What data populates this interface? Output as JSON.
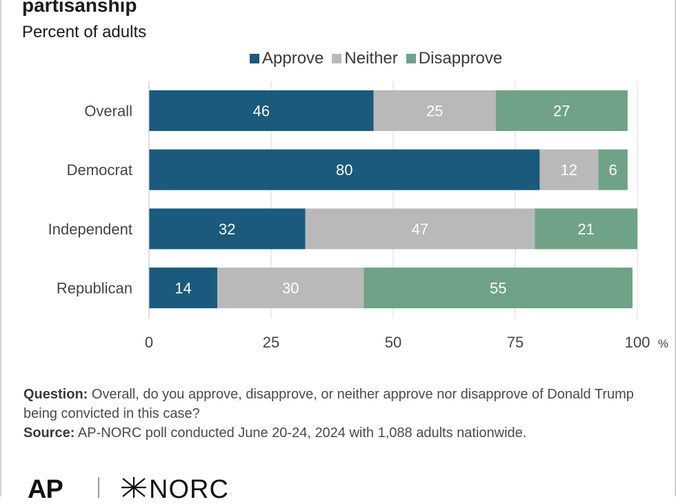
{
  "header": {
    "title": "partisanship",
    "subtitle": "Percent of adults"
  },
  "colors": {
    "approve": "#1a5a7c",
    "neither": "#b9b9b9",
    "disapprove": "#6fa286",
    "grid": "#d9d9d9",
    "axis_text": "#444444"
  },
  "chart_data": {
    "type": "bar",
    "orientation": "horizontal",
    "stacked": true,
    "categories": [
      "Overall",
      "Democrat",
      "Independent",
      "Republican"
    ],
    "series": [
      {
        "name": "Approve",
        "values": [
          46,
          80,
          32,
          14
        ]
      },
      {
        "name": "Neither",
        "values": [
          25,
          12,
          47,
          30
        ]
      },
      {
        "name": "Disapprove",
        "values": [
          27,
          6,
          21,
          55
        ]
      }
    ],
    "xlim": [
      0,
      100
    ],
    "xticks": [
      "0",
      "25",
      "50",
      "75",
      "100"
    ],
    "xunit": "%",
    "grid": true,
    "legend": "top"
  },
  "footer": {
    "question_label": "Question:",
    "question_text": "Overall, do you approve, disapprove, or neither approve nor disapprove of Donald Trump being convicted in this case?",
    "source_label": "Source:",
    "source_text": "AP-NORC poll conducted June 20-24, 2024 with 1,088 adults nationwide."
  },
  "logos": {
    "ap": "AP",
    "norc": "NORC"
  }
}
